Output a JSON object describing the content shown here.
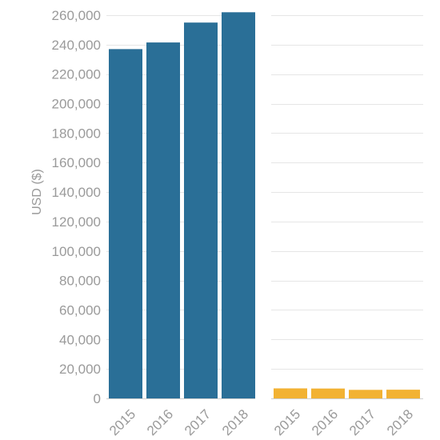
{
  "chart_data": [
    {
      "type": "bar",
      "title": "",
      "xlabel": "",
      "ylabel": "USD ($)",
      "ylim": [
        0,
        260000
      ],
      "y_ticks": [
        "0",
        "20,000",
        "40,000",
        "60,000",
        "80,000",
        "100,000",
        "120,000",
        "140,000",
        "160,000",
        "180,000",
        "200,000",
        "220,000",
        "240,000",
        "260,000"
      ],
      "categories": [
        "2015",
        "2016",
        "2017",
        "2018"
      ],
      "values": [
        237000,
        241500,
        255000,
        262000
      ],
      "color": "#2a6f97",
      "grid": true
    },
    {
      "type": "bar",
      "title": "",
      "xlabel": "",
      "ylabel": "",
      "ylim": [
        0,
        260000
      ],
      "categories": [
        "2015",
        "2016",
        "2017",
        "2018"
      ],
      "values": [
        6800,
        6700,
        5800,
        5900
      ],
      "color": "#f2b233",
      "grid": true
    }
  ],
  "colors": {
    "grid": "#e6e6e6",
    "text": "#9a9a9a"
  }
}
